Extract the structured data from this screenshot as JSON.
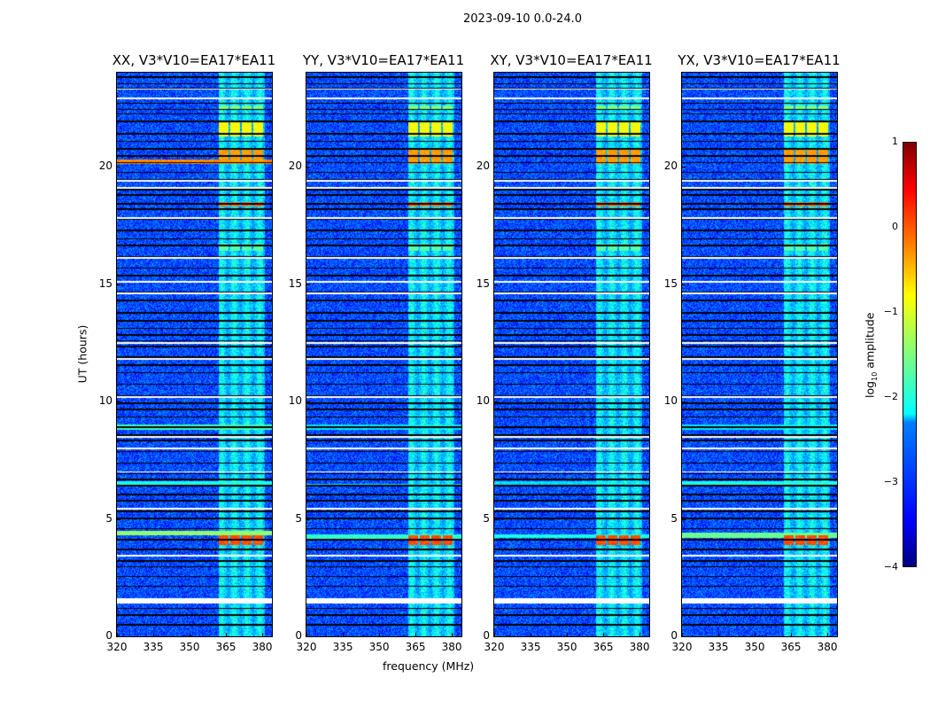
{
  "chart_data": {
    "type": "heatmap",
    "title": "2023-09-10 0.0-24.0",
    "xlabel": "frequency (MHz)",
    "ylabel": "UT (hours)",
    "xlim": [
      320,
      384
    ],
    "ylim": [
      0,
      24
    ],
    "xticks": [
      "320",
      "335",
      "350",
      "365",
      "380"
    ],
    "xtick_values": [
      320,
      335,
      350,
      365,
      380
    ],
    "yticks": [
      "0",
      "5",
      "10",
      "15",
      "20"
    ],
    "ytick_values": [
      0,
      5,
      10,
      15,
      20
    ],
    "colormap": "jet",
    "colorbar": {
      "label": "log10 amplitude",
      "label_base": "log",
      "label_sub": "10",
      "label_rest": " amplitude",
      "range": [
        -4,
        1
      ],
      "ticks": [
        "1",
        "0",
        "−1",
        "−2",
        "−3",
        "−4"
      ],
      "tick_values": [
        1,
        0,
        -1,
        -2,
        -3,
        -4
      ]
    },
    "background_level": -3.0,
    "rfi_band_mhz": [
      362,
      381
    ],
    "rfi_band_level": -2.3,
    "flagged_hours": [
      1.5,
      3.45,
      5.45,
      7.0,
      8.0,
      8.5,
      10.2,
      11.8,
      12.5,
      14.6,
      15.1,
      16.1,
      17.8,
      19.1,
      19.4,
      22.9,
      23.3
    ],
    "bright_blocks": [
      {
        "hours": [
          3.9,
          4.3
        ],
        "level": 0.0
      },
      {
        "hours": [
          18.3,
          18.5
        ],
        "level": -0.2
      },
      {
        "hours": [
          20.1,
          20.7
        ],
        "level": -0.4
      },
      {
        "hours": [
          21.3,
          21.9
        ],
        "level": -0.9
      },
      {
        "hours": [
          22.4,
          22.6
        ],
        "level": -1.5
      },
      {
        "hours": [
          16.4,
          16.7
        ],
        "level": -1.7
      }
    ],
    "panels": [
      {
        "title": "XX, V3*V10=EA17*EA11",
        "broadband_hours": [
          [
            4.3,
            4.5,
            -1.4
          ],
          [
            6.4,
            6.6,
            -2.0
          ],
          [
            8.8,
            9.0,
            -1.8
          ],
          [
            20.1,
            20.3,
            -0.3
          ]
        ]
      },
      {
        "title": "YY, V3*V10=EA17*EA11",
        "broadband_hours": [
          [
            4.1,
            4.35,
            -1.9
          ],
          [
            6.4,
            6.5,
            -2.2
          ],
          [
            8.8,
            9.0,
            -2.2
          ]
        ]
      },
      {
        "title": "XY, V3*V10=EA17*EA11",
        "broadband_hours": [
          [
            4.2,
            4.35,
            -2.0
          ],
          [
            6.4,
            6.6,
            -2.3
          ]
        ]
      },
      {
        "title": "YX, V3*V10=EA17*EA11",
        "broadband_hours": [
          [
            4.2,
            4.4,
            -1.6
          ],
          [
            6.4,
            6.6,
            -2.0
          ],
          [
            8.8,
            9.0,
            -2.2
          ]
        ]
      }
    ]
  }
}
